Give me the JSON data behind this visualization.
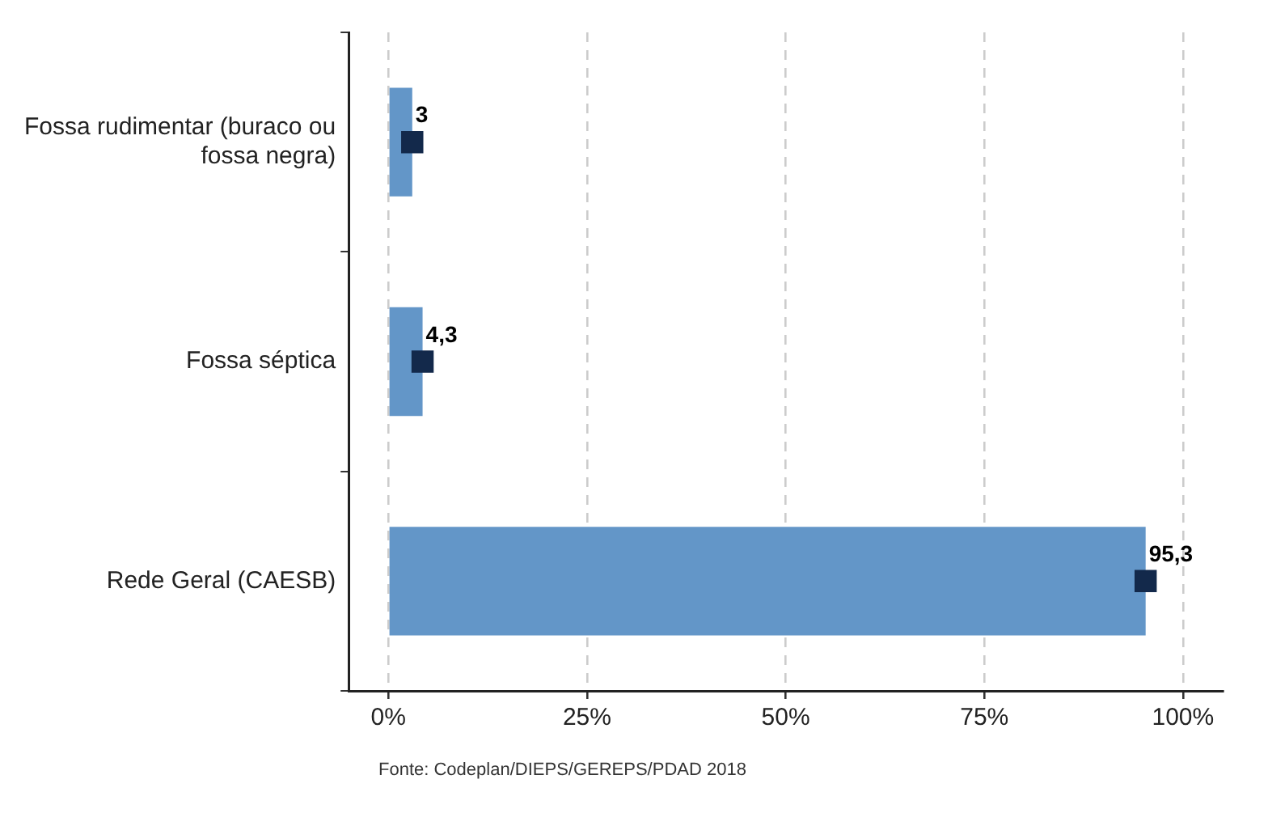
{
  "chart_data": {
    "type": "bar",
    "orientation": "horizontal",
    "categories": [
      "Fossa rudimentar (buraco ou fossa negra)",
      "Fossa séptica",
      "Rede Geral (CAESB)"
    ],
    "series": [
      {
        "color": "#6396c8",
        "values": [
          3,
          4.3,
          95.3
        ]
      },
      {
        "type": "scatter",
        "color": "#13294b",
        "values": [
          3,
          4.3,
          95.3
        ],
        "value_labels": [
          "3",
          "4,3",
          "95,3"
        ]
      }
    ],
    "marker": "square",
    "xlim": [
      -5,
      105
    ],
    "xticks": [
      {
        "value": 0,
        "label": "0%"
      },
      {
        "value": 25,
        "label": "25%"
      },
      {
        "value": 50,
        "label": "50%"
      },
      {
        "value": 75,
        "label": "75%"
      },
      {
        "value": 100,
        "label": "100%"
      }
    ],
    "grid": "x",
    "line_style": "dashed",
    "legend": false,
    "annotations": [
      "Fonte: Codeplan/DIEPS/GEREPS/PDAD 2018"
    ]
  }
}
